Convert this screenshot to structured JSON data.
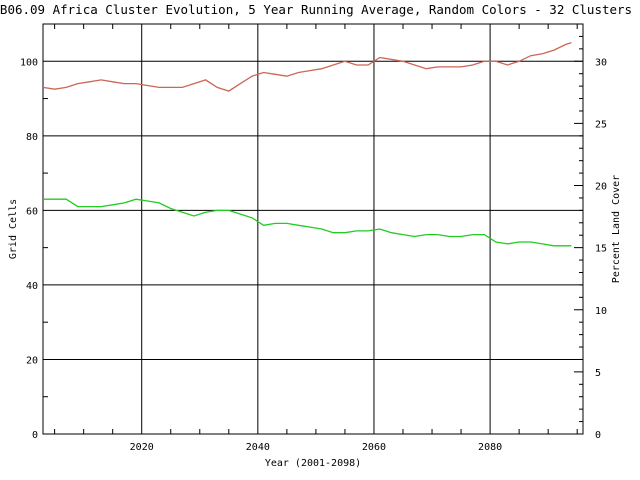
{
  "chart_data": {
    "type": "line",
    "title": "B06.09 Africa Cluster Evolution, 5 Year Running Average, Random Colors - 32 Clusters",
    "xlabel": "Year (2001-2098)",
    "ylabel": "Grid Cells",
    "y2label": "Percent Land Cover",
    "xlim": [
      2003,
      2096
    ],
    "ylim": [
      0,
      110
    ],
    "y2lim": [
      0,
      33
    ],
    "xticks": [
      2020,
      2040,
      2060,
      2080
    ],
    "yticks": [
      0,
      20,
      40,
      60,
      80,
      100
    ],
    "y2ticks": [
      0,
      5,
      10,
      15,
      20,
      25,
      30
    ],
    "grid": true,
    "series": [
      {
        "color": "#cc6655",
        "x": [
          2003,
          2005,
          2007,
          2009,
          2011,
          2013,
          2015,
          2017,
          2019,
          2021,
          2023,
          2025,
          2027,
          2029,
          2031,
          2033,
          2035,
          2037,
          2039,
          2041,
          2043,
          2045,
          2047,
          2049,
          2051,
          2053,
          2055,
          2057,
          2059,
          2061,
          2063,
          2065,
          2067,
          2069,
          2071,
          2073,
          2075,
          2077,
          2079,
          2081,
          2083,
          2085,
          2087,
          2089,
          2091,
          2093,
          2094
        ],
        "values": [
          93,
          92.5,
          93,
          94,
          94.5,
          95,
          94.5,
          94,
          94,
          93.5,
          93,
          93,
          93,
          94,
          95,
          93,
          92,
          94,
          96,
          97,
          96.5,
          96,
          97,
          97.5,
          98,
          99,
          100,
          99,
          99,
          101,
          100.5,
          100,
          99,
          98,
          98.5,
          98.5,
          98.5,
          99,
          100,
          100,
          99,
          100,
          101.5,
          102,
          103,
          104.5,
          105
        ]
      },
      {
        "color": "#22cc22",
        "x": [
          2003,
          2005,
          2007,
          2009,
          2011,
          2013,
          2015,
          2017,
          2019,
          2021,
          2023,
          2025,
          2027,
          2029,
          2031,
          2033,
          2035,
          2037,
          2039,
          2041,
          2043,
          2045,
          2047,
          2049,
          2051,
          2053,
          2055,
          2057,
          2059,
          2061,
          2063,
          2065,
          2067,
          2069,
          2071,
          2073,
          2075,
          2077,
          2079,
          2081,
          2083,
          2085,
          2087,
          2089,
          2091,
          2093,
          2094
        ],
        "values": [
          63,
          63,
          63,
          61,
          61,
          61,
          61.5,
          62,
          63,
          62.5,
          62,
          60.5,
          59.5,
          58.5,
          59.5,
          60,
          60,
          59,
          58,
          56,
          56.5,
          56.5,
          56,
          55.5,
          55,
          54,
          54,
          54.5,
          54.5,
          55,
          54,
          53.5,
          53,
          53.5,
          53.5,
          53,
          53,
          53.5,
          53.5,
          51.5,
          51,
          51.5,
          51.5,
          51,
          50.5,
          50.5,
          50.5
        ]
      }
    ]
  }
}
